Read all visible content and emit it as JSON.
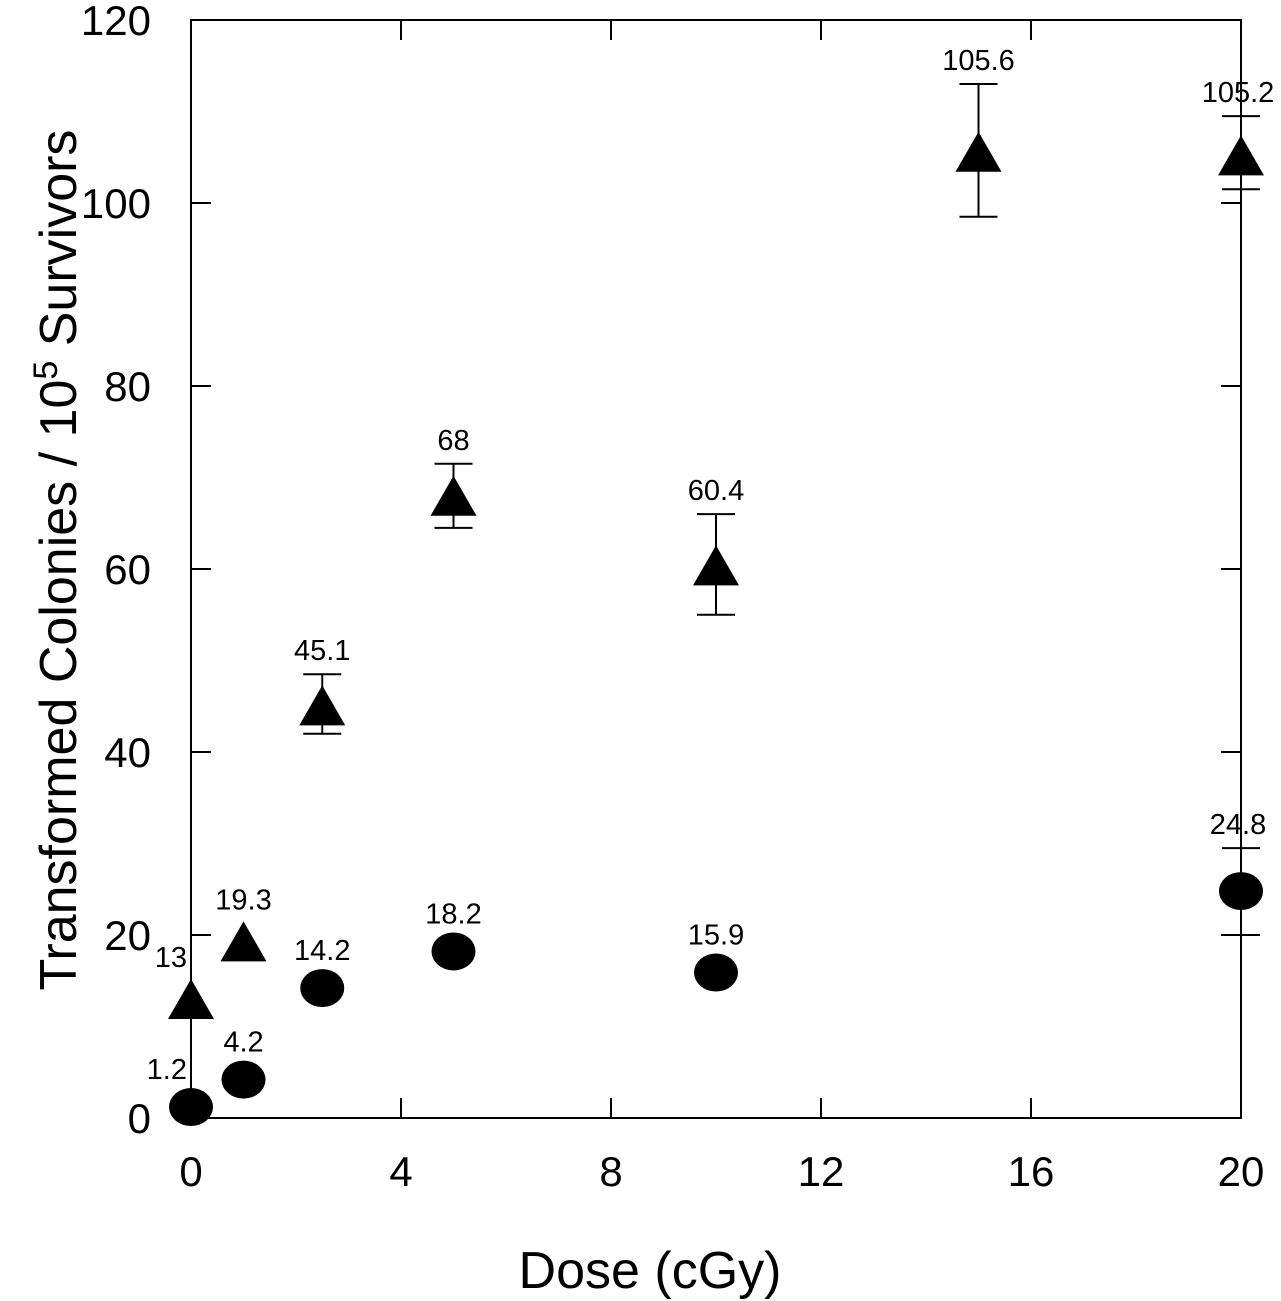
{
  "chart_data": {
    "type": "scatter",
    "title": "",
    "xlabel": "Dose (cGy)",
    "ylabel": {
      "prefix": "Transformed Colonies / 10",
      "superscript": "5",
      "suffix": " Survivors"
    },
    "xlim": [
      0,
      20
    ],
    "ylim": [
      0,
      120
    ],
    "x_ticks": [
      0,
      4,
      8,
      12,
      16,
      20
    ],
    "y_ticks": [
      0,
      20,
      40,
      60,
      80,
      100,
      120
    ],
    "grid": false,
    "series": [
      {
        "marker": "triangle",
        "color": "#000000",
        "points": [
          {
            "x": 0,
            "y": 13,
            "label": "13",
            "err": null
          },
          {
            "x": 1,
            "y": 19.3,
            "label": "19.3",
            "err": null
          },
          {
            "x": 2.5,
            "y": 45.1,
            "label": "45.1",
            "err": [
              42,
              48.5
            ]
          },
          {
            "x": 5,
            "y": 68,
            "label": "68",
            "err": [
              64.5,
              71.5
            ]
          },
          {
            "x": 10,
            "y": 60.4,
            "label": "60.4",
            "err": [
              55,
              66
            ]
          },
          {
            "x": 15,
            "y": 105.6,
            "label": "105.6",
            "err": [
              98.5,
              113
            ]
          },
          {
            "x": 20,
            "y": 105.2,
            "label": "105.2",
            "err": [
              101.5,
              109.5
            ]
          }
        ]
      },
      {
        "marker": "circle",
        "color": "#000000",
        "points": [
          {
            "x": 0,
            "y": 1.2,
            "label": "1.2",
            "err": null
          },
          {
            "x": 1,
            "y": 4.2,
            "label": "4.2",
            "err": null
          },
          {
            "x": 2.5,
            "y": 14.2,
            "label": "14.2",
            "err": null
          },
          {
            "x": 5,
            "y": 18.2,
            "label": "18.2",
            "err": null
          },
          {
            "x": 10,
            "y": 15.9,
            "label": "15.9",
            "err": null
          },
          {
            "x": 20,
            "y": 24.8,
            "label": "24.8",
            "err": [
              20,
              29.5
            ]
          }
        ]
      }
    ]
  }
}
